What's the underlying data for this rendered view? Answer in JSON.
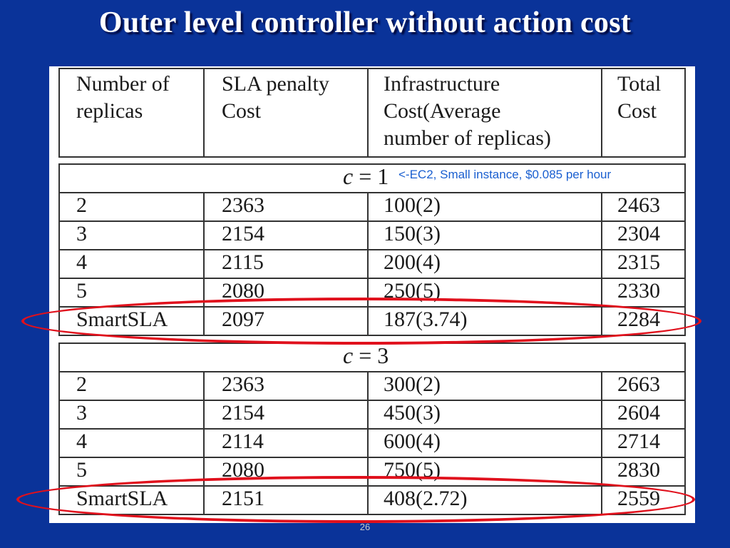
{
  "slide": {
    "title": "Outer level controller without action cost",
    "page_number": "26"
  },
  "table": {
    "headers": [
      "Number of\nreplicas",
      "SLA  penalty\nCost",
      "Infrastructure\nCost(Average\nnumber of replicas)",
      "Total\nCost"
    ],
    "sections": [
      {
        "label_var": "c",
        "label_eq": "=",
        "label_val": "1",
        "rows": [
          [
            "2",
            "2363",
            "100(2)",
            "2463"
          ],
          [
            "3",
            "2154",
            "150(3)",
            "2304"
          ],
          [
            "4",
            "2115",
            "200(4)",
            "2315"
          ],
          [
            "5",
            "2080",
            "250(5)",
            "2330"
          ],
          [
            "SmartSLA",
            "2097",
            "187(3.74)",
            "2284"
          ]
        ]
      },
      {
        "label_var": "c",
        "label_eq": "=",
        "label_val": "3",
        "rows": [
          [
            "2",
            "2363",
            "300(2)",
            "2663"
          ],
          [
            "3",
            "2154",
            "450(3)",
            "2604"
          ],
          [
            "4",
            "2114",
            "600(4)",
            "2714"
          ],
          [
            "5",
            "2080",
            "750(5)",
            "2830"
          ],
          [
            "SmartSLA",
            "2151",
            "408(2.72)",
            "2559"
          ]
        ]
      }
    ]
  },
  "annotation": {
    "text": "<-EC2, Small instance, $0.085 per hour",
    "color": "#1a5fd0"
  },
  "highlight_color": "#e0101c"
}
